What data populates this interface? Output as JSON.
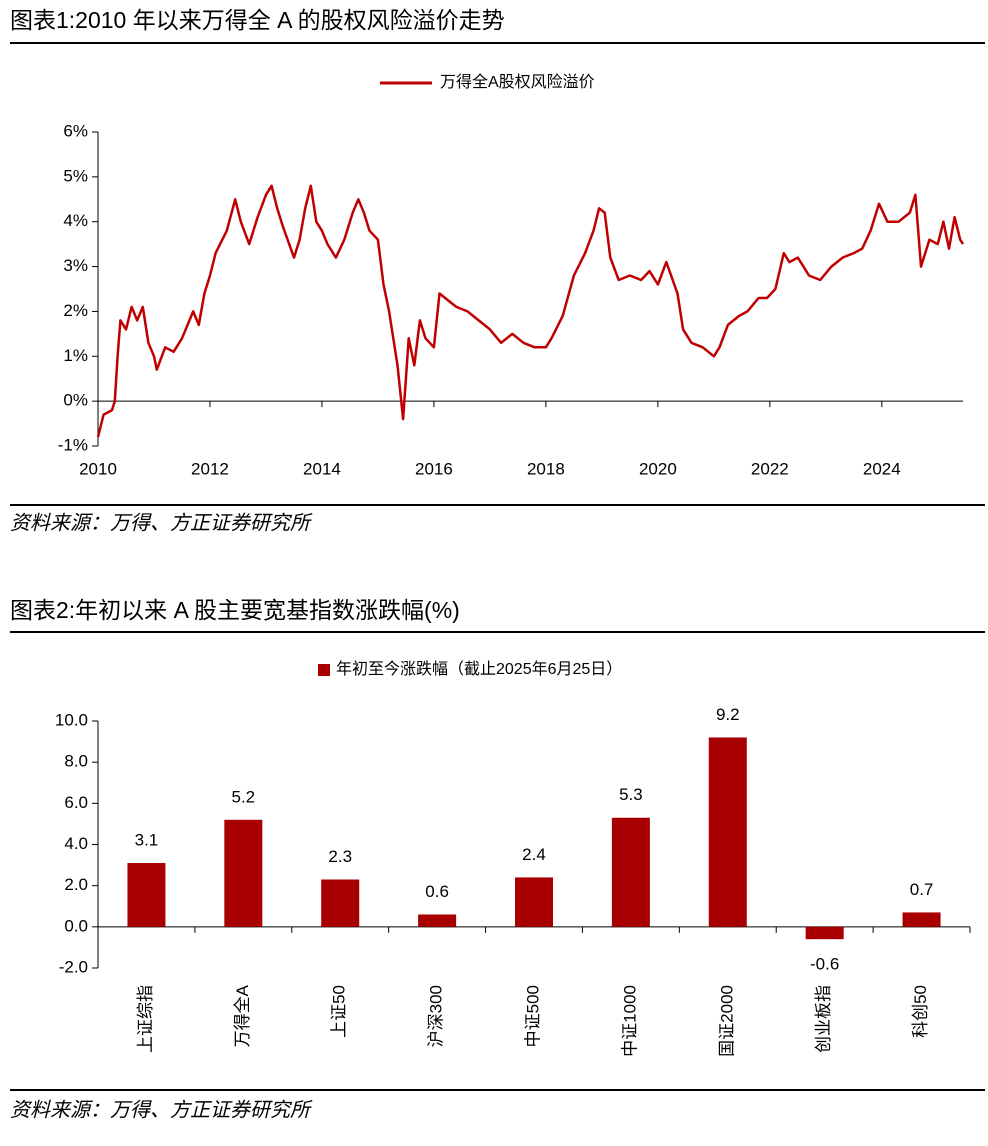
{
  "chart_data": [
    {
      "type": "line",
      "title": "图表1:2010 年以来万得全 A 的股权风险溢价走势",
      "source": "资料来源：万得、方正证券研究所",
      "x": [
        2010.0,
        2010.1,
        2010.25,
        2010.3,
        2010.35,
        2010.4,
        2010.5,
        2010.6,
        2010.7,
        2010.8,
        2010.9,
        2011.0,
        2011.05,
        2011.2,
        2011.35,
        2011.5,
        2011.7,
        2011.8,
        2011.9,
        2012.0,
        2012.1,
        2012.3,
        2012.45,
        2012.55,
        2012.7,
        2012.85,
        2013.0,
        2013.1,
        2013.2,
        2013.3,
        2013.5,
        2013.6,
        2013.7,
        2013.8,
        2013.9,
        2014.0,
        2014.1,
        2014.25,
        2014.4,
        2014.55,
        2014.65,
        2014.75,
        2014.85,
        2015.0,
        2015.1,
        2015.2,
        2015.35,
        2015.45,
        2015.55,
        2015.65,
        2015.75,
        2015.85,
        2016.0,
        2016.1,
        2016.2,
        2016.4,
        2016.6,
        2016.8,
        2017.0,
        2017.2,
        2017.4,
        2017.6,
        2017.8,
        2018.0,
        2018.1,
        2018.3,
        2018.5,
        2018.7,
        2018.85,
        2018.95,
        2019.05,
        2019.15,
        2019.3,
        2019.5,
        2019.7,
        2019.85,
        2020.0,
        2020.15,
        2020.35,
        2020.45,
        2020.6,
        2020.8,
        2021.0,
        2021.1,
        2021.25,
        2021.45,
        2021.6,
        2021.8,
        2021.95,
        2022.1,
        2022.25,
        2022.35,
        2022.5,
        2022.7,
        2022.9,
        2023.1,
        2023.3,
        2023.5,
        2023.65,
        2023.8,
        2023.95,
        2024.1,
        2024.3,
        2024.5,
        2024.6,
        2024.7,
        2024.85,
        2025.0,
        2025.1,
        2025.2,
        2025.3,
        2025.4,
        2025.45
      ],
      "series": [
        {
          "name": "万得全A股权风险溢价",
          "color": "#c00000",
          "values": [
            -0.8,
            -0.3,
            -0.2,
            0.0,
            1.0,
            1.8,
            1.6,
            2.1,
            1.8,
            2.1,
            1.3,
            1.0,
            0.7,
            1.2,
            1.1,
            1.4,
            2.0,
            1.7,
            2.4,
            2.8,
            3.3,
            3.8,
            4.5,
            4.0,
            3.5,
            4.1,
            4.6,
            4.8,
            4.3,
            3.9,
            3.2,
            3.6,
            4.3,
            4.8,
            4.0,
            3.8,
            3.5,
            3.2,
            3.6,
            4.2,
            4.5,
            4.2,
            3.8,
            3.6,
            2.6,
            2.0,
            0.8,
            -0.4,
            1.4,
            0.8,
            1.8,
            1.4,
            1.2,
            2.4,
            2.3,
            2.1,
            2.0,
            1.8,
            1.6,
            1.3,
            1.5,
            1.3,
            1.2,
            1.2,
            1.4,
            1.9,
            2.8,
            3.3,
            3.8,
            4.3,
            4.2,
            3.2,
            2.7,
            2.8,
            2.7,
            2.9,
            2.6,
            3.1,
            2.4,
            1.6,
            1.3,
            1.2,
            1.0,
            1.2,
            1.7,
            1.9,
            2.0,
            2.3,
            2.3,
            2.5,
            3.3,
            3.1,
            3.2,
            2.8,
            2.7,
            3.0,
            3.2,
            3.3,
            3.4,
            3.8,
            4.4,
            4.0,
            4.0,
            4.2,
            4.6,
            3.0,
            3.6,
            3.5,
            4.0,
            3.4,
            4.1,
            3.6,
            3.5
          ]
        }
      ],
      "xlim": [
        2010,
        2025.45
      ],
      "xticks": [
        2010,
        2012,
        2014,
        2016,
        2018,
        2020,
        2022,
        2024
      ],
      "ylim": [
        -1,
        6
      ],
      "yticks": [
        {
          "value": -1,
          "label": "-1%"
        },
        {
          "value": 0,
          "label": "0%"
        },
        {
          "value": 1,
          "label": "1%"
        },
        {
          "value": 2,
          "label": "2%"
        },
        {
          "value": 3,
          "label": "3%"
        },
        {
          "value": 4,
          "label": "4%"
        },
        {
          "value": 5,
          "label": "5%"
        },
        {
          "value": 6,
          "label": "6%"
        }
      ]
    },
    {
      "type": "bar",
      "title": "图表2:年初以来 A 股主要宽基指数涨跌幅(%)",
      "source": "资料来源：万得、方正证券研究所",
      "categories": [
        "上证综指",
        "万得全A",
        "上证50",
        "沪深300",
        "中证500",
        "中证1000",
        "国证2000",
        "创业板指",
        "科创50"
      ],
      "series": [
        {
          "name": "年初至今涨跌幅（截止2025年6月25日）",
          "color": "#a80000",
          "values": [
            3.1,
            5.2,
            2.3,
            0.6,
            2.4,
            5.3,
            9.2,
            -0.6,
            0.7
          ]
        }
      ],
      "ylim": [
        -2,
        10
      ],
      "yticks": [
        {
          "value": -2,
          "label": "-2.0"
        },
        {
          "value": 0,
          "label": "0.0"
        },
        {
          "value": 2,
          "label": "2.0"
        },
        {
          "value": 4,
          "label": "4.0"
        },
        {
          "value": 6,
          "label": "6.0"
        },
        {
          "value": 8,
          "label": "8.0"
        },
        {
          "value": 10,
          "label": "10.0"
        }
      ]
    }
  ]
}
